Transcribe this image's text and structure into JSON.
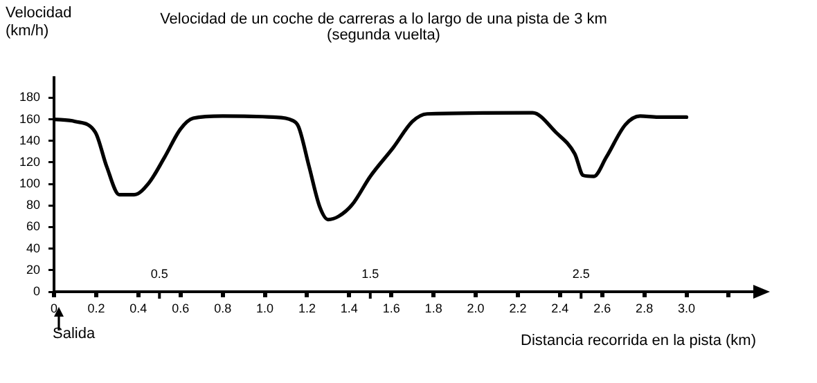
{
  "chart_data": {
    "type": "line",
    "title": "Velocidad de un coche de carreras a lo largo de una pista de 3 km\n(segunda vuelta)",
    "xlabel": "Distancia recorrida en la pista (km)",
    "ylabel": "Velocidad\n(km/h)",
    "x": [
      0,
      0.1,
      0.196,
      0.25,
      0.31,
      0.38,
      0.45,
      0.525,
      0.6,
      0.66,
      0.8,
      1.04,
      1.13,
      1.16,
      1.21,
      1.26,
      1.3,
      1.35,
      1.415,
      1.5,
      1.61,
      1.7,
      1.77,
      2.27,
      2.38,
      2.47,
      2.51,
      2.56,
      2.62,
      2.71,
      2.78,
      2.865,
      3.0
    ],
    "series": [
      {
        "color": "#000000",
        "values": [
          160,
          158,
          148,
          116,
          90,
          90,
          101,
          125,
          151,
          161,
          163,
          162,
          159,
          153,
          116,
          79,
          67,
          70,
          81,
          107,
          134,
          158,
          165,
          166,
          148,
          128,
          108,
          107,
          125,
          155,
          163,
          162,
          162
        ]
      }
    ],
    "xlim": [
      0,
      3.33
    ],
    "ylim": [
      0,
      200
    ],
    "xticks": [
      0,
      0.2,
      0.4,
      0.6,
      0.8,
      {
        "value": 1,
        "label": "1.0"
      },
      1.2,
      1.4,
      1.6,
      1.8,
      {
        "value": 2,
        "label": "2.0"
      },
      2.2,
      2.4,
      2.6,
      2.8,
      {
        "value": 3,
        "label": "3.0"
      },
      {
        "value": 3.2,
        "label": null
      }
    ],
    "x2lim": [
      0,
      3.33
    ],
    "x2ticks": [
      0.5,
      1.5,
      2.5
    ],
    "yticks": [
      0,
      20,
      40,
      60,
      80,
      100,
      120,
      140,
      160,
      180
    ],
    "grid": false,
    "legend": false,
    "marker": "none",
    "line_style": "solid",
    "annotations": [
      "Salida"
    ]
  }
}
